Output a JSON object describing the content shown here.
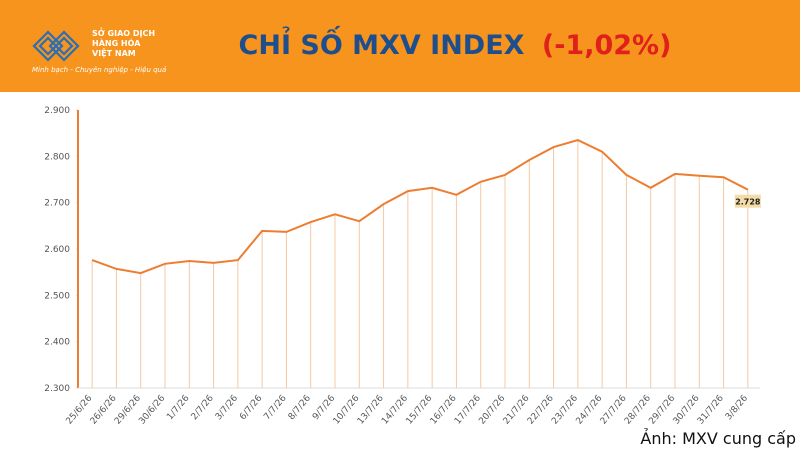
{
  "logo": {
    "name_lines": [
      "SỞ GIAO DỊCH",
      "HÀNG HÓA",
      "VIỆT NAM"
    ],
    "slogan": "Minh bạch - Chuyên nghiệp - Hiệu quả"
  },
  "credit": "Ảnh: MXV cung cấp",
  "chart_data": {
    "type": "line",
    "title": "CHỈ SỐ MXV INDEX",
    "title_change": "(-1,02%)",
    "categories": [
      "25/6/26",
      "26/6/26",
      "29/6/26",
      "30/6/26",
      "1/7/26",
      "2/7/26",
      "3/7/26",
      "6/7/26",
      "7/7/26",
      "8/7/26",
      "9/7/26",
      "10/7/26",
      "13/7/26",
      "14/7/26",
      "15/7/26",
      "16/7/26",
      "17/7/26",
      "20/7/26",
      "21/7/26",
      "22/7/26",
      "23/7/26",
      "24/7/26",
      "27/7/26",
      "28/7/26",
      "29/7/26",
      "30/7/26",
      "31/7/26",
      "3/8/26"
    ],
    "series": [
      {
        "color": "#ed7d31",
        "values": [
          2576,
          2557,
          2548,
          2568,
          2574,
          2570,
          2576,
          2639,
          2637,
          2658,
          2675,
          2660,
          2697,
          2725,
          2732,
          2717,
          2745,
          2760,
          2792,
          2820,
          2835,
          2810,
          2760,
          2732,
          2762,
          2758,
          2755,
          2728
        ],
        "value_labels": [
          null,
          null,
          null,
          null,
          null,
          null,
          null,
          null,
          null,
          null,
          null,
          null,
          null,
          null,
          null,
          null,
          null,
          null,
          null,
          null,
          null,
          null,
          null,
          null,
          null,
          null,
          null,
          "2.728"
        ]
      }
    ],
    "ylim": [
      2300,
      2900
    ],
    "yticks": [
      {
        "value": 2300,
        "label": "2.300"
      },
      {
        "value": 2400,
        "label": "2.400"
      },
      {
        "value": 2500,
        "label": "2.500"
      },
      {
        "value": 2600,
        "label": "2.600"
      },
      {
        "value": 2700,
        "label": "2.700"
      },
      {
        "value": 2800,
        "label": "2.800"
      },
      {
        "value": 2900,
        "label": "2.900"
      }
    ],
    "drop_lines": true
  }
}
